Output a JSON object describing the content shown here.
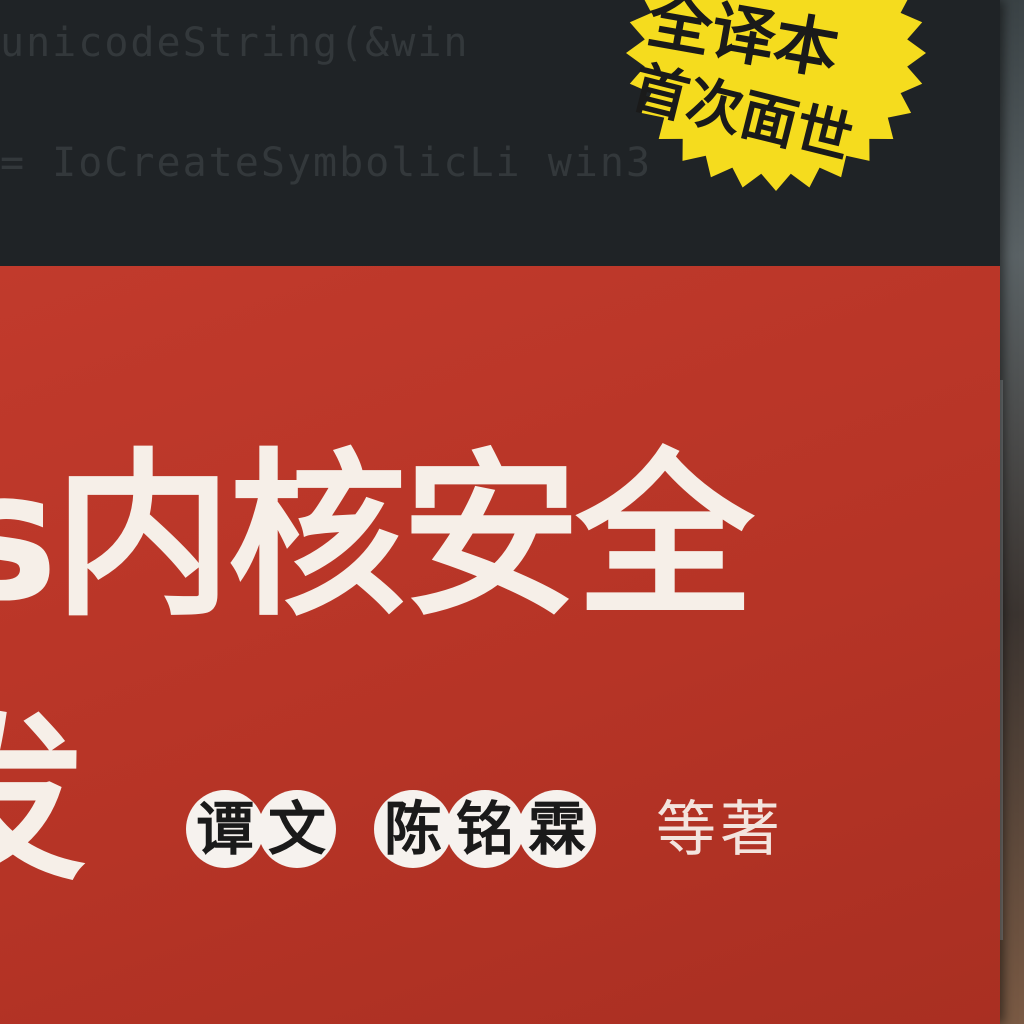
{
  "cover": {
    "code_line_1": "unicodeString(&win",
    "code_line_2": "= IoCreateSymbolicLi  win3",
    "title_line_1": "s内核安全",
    "title_line_2": "发",
    "authors": [
      {
        "chars": [
          "谭",
          "文"
        ]
      },
      {
        "chars": [
          "陈",
          "铭",
          "霖"
        ]
      }
    ],
    "credit": "等著",
    "badge": {
      "line_1": "全译本",
      "line_2": "首次面世"
    }
  },
  "colors": {
    "top_band": "#1f2326",
    "red_band": "#b63426",
    "title_text": "#f6efe8",
    "badge_yellow": "#f5dc1e",
    "author_circle": "#f6f2ee"
  }
}
